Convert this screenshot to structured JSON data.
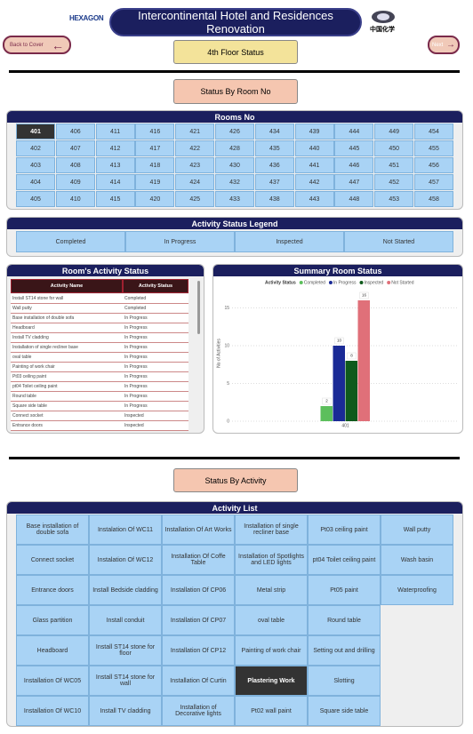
{
  "header": {
    "logo_left": "HEXAGON",
    "title": "Intercontinental Hotel and Residences Renovation",
    "logo_right": "中国化学"
  },
  "nav": {
    "back": "Back to Cover",
    "page": "4th Floor Status",
    "next": "Next"
  },
  "rooms_section": {
    "button": "Status By Room No",
    "title": "Rooms No",
    "rooms": [
      [
        "401",
        "406",
        "411",
        "416",
        "421",
        "426",
        "434",
        "439",
        "444",
        "449",
        "454"
      ],
      [
        "402",
        "407",
        "412",
        "417",
        "422",
        "428",
        "435",
        "440",
        "445",
        "450",
        "455"
      ],
      [
        "403",
        "408",
        "413",
        "418",
        "423",
        "430",
        "436",
        "441",
        "446",
        "451",
        "456"
      ],
      [
        "404",
        "409",
        "414",
        "419",
        "424",
        "432",
        "437",
        "442",
        "447",
        "452",
        "457"
      ],
      [
        "405",
        "410",
        "415",
        "420",
        "425",
        "433",
        "438",
        "443",
        "448",
        "453",
        "458"
      ]
    ]
  },
  "legend": {
    "title": "Activity Status Legend",
    "items": [
      "Completed",
      "In Progress",
      "Inspected",
      "Not Started"
    ]
  },
  "activity_table": {
    "title": "Room's Activity Status",
    "columns": [
      "Activity Name",
      "Activity Status"
    ],
    "rows": [
      [
        "Install ST14 stone for wall",
        "Completed"
      ],
      [
        "Wall putty",
        "Completed"
      ],
      [
        "Base installation of double sofa",
        "In Progress"
      ],
      [
        "Headboard",
        "In Progress"
      ],
      [
        "Install TV cladding",
        "In Progress"
      ],
      [
        "Installation of single recliner base",
        "In Progress"
      ],
      [
        "oval table",
        "In Progress"
      ],
      [
        "Painting of work chair",
        "In Progress"
      ],
      [
        "Pt03 ceiling paint",
        "In Progress"
      ],
      [
        "pt04 Toilet ceiling paint",
        "In Progress"
      ],
      [
        "Round table",
        "In Progress"
      ],
      [
        "Square side table",
        "In Progress"
      ],
      [
        "Connect socket",
        "Inspected"
      ],
      [
        "Entrance doors",
        "Inspected"
      ]
    ]
  },
  "summary_chart": {
    "type": "bar",
    "title": "Summary Room Status",
    "legend_title": "Activity Status",
    "y_label": "No of Activities",
    "categories": [
      "401"
    ],
    "series": [
      {
        "name": "Completed",
        "color": "#5cbf5c",
        "values": [
          2
        ]
      },
      {
        "name": "In Progress",
        "color": "#1a2a96",
        "values": [
          10
        ]
      },
      {
        "name": "Inspected",
        "color": "#0f5a1c",
        "values": [
          8
        ]
      },
      {
        "name": "Not Started",
        "color": "#e07079",
        "values": [
          16
        ]
      }
    ],
    "ylim": [
      0,
      18
    ],
    "yticks": [
      0,
      5,
      10,
      15
    ],
    "grid": true
  },
  "activity_section": {
    "button": "Status By Activity",
    "title": "Activity List",
    "activities": [
      [
        "Base installation of double sofa",
        "Instalation Of WC11",
        "Installation Of Art Works",
        "Installation of single recliner base",
        "Pt03 ceiling paint",
        "Wall putty"
      ],
      [
        "Connect socket",
        "Instalation Of WC12",
        "Installation Of Coffe Table",
        "Installation of Spotlights and LED lights",
        "pt04 Toilet ceiling paint",
        "Wash basin"
      ],
      [
        "Entrance doors",
        "Install Bedside cladding",
        "Installation Of CP06",
        "Metal strip",
        "Pt05 paint",
        "Waterproofing"
      ],
      [
        "Glass partition",
        "Install conduit",
        "Installation Of CP07",
        "oval table",
        "Round table"
      ],
      [
        "Headboard",
        "Install ST14 stone for floor",
        "Installation Of CP12",
        "Painting of work chair",
        "Setting out and drilling"
      ],
      [
        "Installation Of WC05",
        "Install ST14 stone for wall",
        "Installation Of Curtin",
        "Plastering Work",
        "Slotting"
      ],
      [
        "Installation Of WC10",
        "Install TV cladding",
        "Installation of Decorative lights",
        "Pt02 wall paint",
        "Square side table"
      ]
    ]
  }
}
